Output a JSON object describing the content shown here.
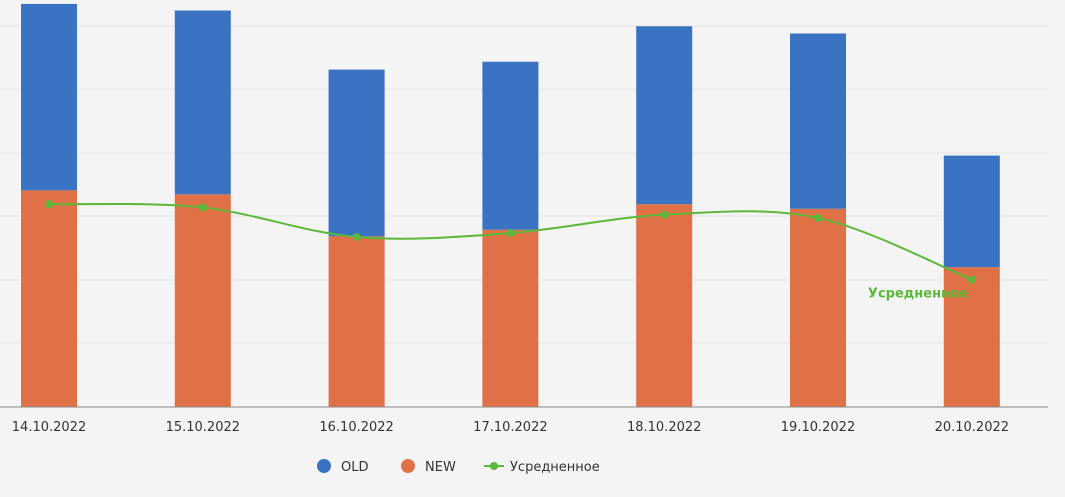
{
  "chart_data": {
    "type": "bar",
    "stacked": true,
    "categories": [
      "14.10.2022",
      "15.10.2022",
      "16.10.2022",
      "17.10.2022",
      "18.10.2022",
      "19.10.2022",
      "20.10.2022"
    ],
    "series": [
      {
        "name": "NEW",
        "type": "bar",
        "color": "#e07045",
        "values": [
          3.3,
          3.24,
          2.6,
          2.7,
          3.09,
          3.02,
          2.13
        ]
      },
      {
        "name": "OLD",
        "type": "bar",
        "color": "#3a73c2",
        "values": [
          2.84,
          2.8,
          2.54,
          2.56,
          2.71,
          2.67,
          1.7
        ]
      },
      {
        "name": "Усредненное",
        "type": "line",
        "smooth": true,
        "color": "#5cb83a",
        "values": [
          3.09,
          3.04,
          2.59,
          2.65,
          2.93,
          2.88,
          1.94
        ]
      }
    ],
    "ylim": [
      0,
      6.2
    ],
    "grid": true,
    "legend_position": "bottom-center",
    "series_label": "Усредненное"
  }
}
